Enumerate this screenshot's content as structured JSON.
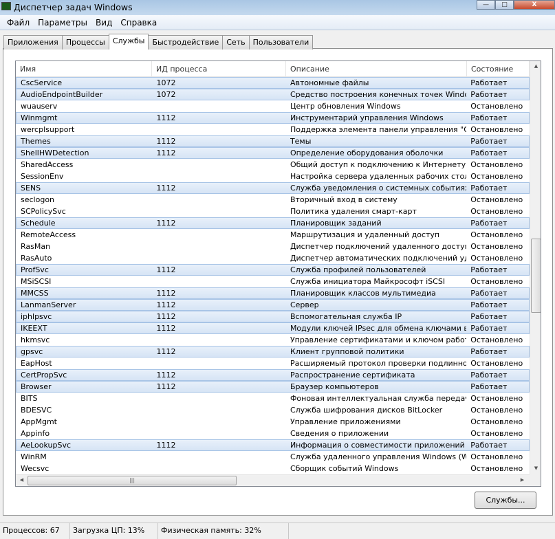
{
  "window": {
    "title": "Диспетчер задач Windows",
    "minimize": "—",
    "maximize": "□",
    "close": "X"
  },
  "menu": [
    "Файл",
    "Параметры",
    "Вид",
    "Справка"
  ],
  "tabs": [
    "Приложения",
    "Процессы",
    "Службы",
    "Быстродействие",
    "Сеть",
    "Пользователи"
  ],
  "active_tab": "Службы",
  "columns": [
    "Имя",
    "ИД процесса",
    "Описание",
    "Состояние"
  ],
  "rows": [
    [
      "CscService",
      "1072",
      "Автономные файлы",
      "Работает"
    ],
    [
      "AudioEndpointBuilder",
      "1072",
      "Средство построения конечных точек Window...",
      "Работает"
    ],
    [
      "wuauserv",
      "",
      "Центр обновления Windows",
      "Остановлено"
    ],
    [
      "Winmgmt",
      "1112",
      "Инструментарий управления Windows",
      "Работает"
    ],
    [
      "wercplsupport",
      "",
      "Поддержка элемента панели управления \"Отч...",
      "Остановлено"
    ],
    [
      "Themes",
      "1112",
      "Темы",
      "Работает"
    ],
    [
      "ShellHWDetection",
      "1112",
      "Определение оборудования оболочки",
      "Работает"
    ],
    [
      "SharedAccess",
      "",
      "Общий доступ к подключению к Интернету (I...",
      "Остановлено"
    ],
    [
      "SessionEnv",
      "",
      "Настройка сервера удаленных рабочих столов",
      "Остановлено"
    ],
    [
      "SENS",
      "1112",
      "Служба уведомления о системных событиях",
      "Работает"
    ],
    [
      "seclogon",
      "",
      "Вторичный вход в систему",
      "Остановлено"
    ],
    [
      "SCPolicySvc",
      "",
      "Политика удаления смарт-карт",
      "Остановлено"
    ],
    [
      "Schedule",
      "1112",
      "Планировщик заданий",
      "Работает"
    ],
    [
      "RemoteAccess",
      "",
      "Маршрутизация и удаленный доступ",
      "Остановлено"
    ],
    [
      "RasMan",
      "",
      "Диспетчер подключений удаленного доступа",
      "Остановлено"
    ],
    [
      "RasAuto",
      "",
      "Диспетчер автоматических подключений уда...",
      "Остановлено"
    ],
    [
      "ProfSvc",
      "1112",
      "Служба профилей пользователей",
      "Работает"
    ],
    [
      "MSiSCSI",
      "",
      "Служба инициатора Майкрософт iSCSI",
      "Остановлено"
    ],
    [
      "MMCSS",
      "1112",
      "Планировщик классов мультимедиа",
      "Работает"
    ],
    [
      "LanmanServer",
      "1112",
      "Сервер",
      "Работает"
    ],
    [
      "iphlpsvc",
      "1112",
      "Вспомогательная служба IP",
      "Работает"
    ],
    [
      "IKEEXT",
      "1112",
      "Модули ключей IPsec для обмена ключами в И...",
      "Работает"
    ],
    [
      "hkmsvc",
      "",
      "Управление сертификатами и ключом работос...",
      "Остановлено"
    ],
    [
      "gpsvc",
      "1112",
      "Клиент групповой политики",
      "Работает"
    ],
    [
      "EapHost",
      "",
      "Расширяемый протокол проверки подлинност...",
      "Остановлено"
    ],
    [
      "CertPropSvc",
      "1112",
      "Распространение сертификата",
      "Работает"
    ],
    [
      "Browser",
      "1112",
      "Браузер компьютеров",
      "Работает"
    ],
    [
      "BITS",
      "",
      "Фоновая интеллектуальная служба передачи ...",
      "Остановлено"
    ],
    [
      "BDESVC",
      "",
      "Служба шифрования дисков BitLocker",
      "Остановлено"
    ],
    [
      "AppMgmt",
      "",
      "Управление приложениями",
      "Остановлено"
    ],
    [
      "Appinfo",
      "",
      "Сведения о приложении",
      "Остановлено"
    ],
    [
      "AeLookupSvc",
      "1112",
      "Информация о совместимости приложений",
      "Работает"
    ],
    [
      "WinRM",
      "",
      "Служба удаленного управления Windows (WS-...",
      "Остановлено"
    ],
    [
      "Wecsvc",
      "",
      "Сборщик событий Windows",
      "Остановлено"
    ]
  ],
  "services_button": "Службы...",
  "status": {
    "processes": "Процессов: 67",
    "cpu": "Загрузка ЦП: 13%",
    "memory": "Физическая память: 32%"
  },
  "colors": {
    "highlight": "#d6e4f5",
    "highlight_border": "#a8c4e6"
  }
}
